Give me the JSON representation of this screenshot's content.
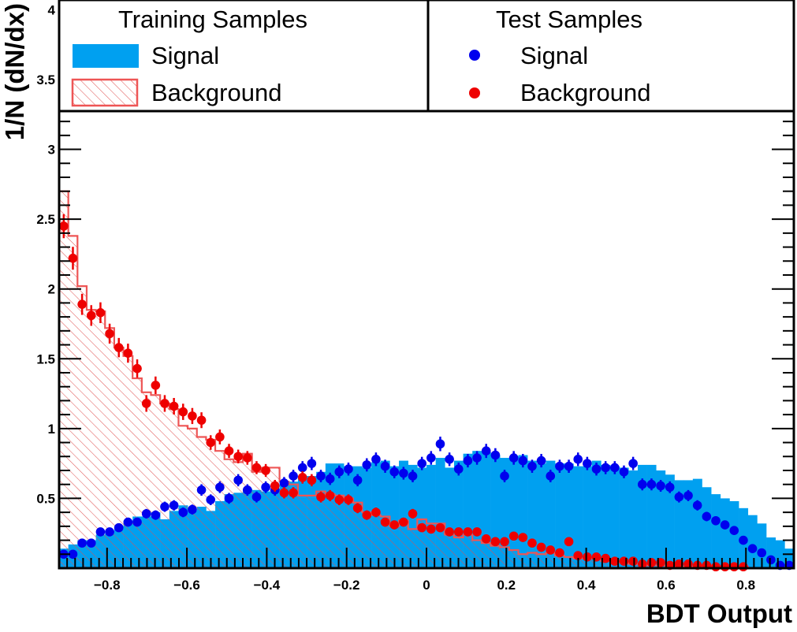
{
  "chart_data": {
    "type": "histogram",
    "xlabel": "BDT Output",
    "ylabel": "1/N (dN/dx)",
    "xlim": [
      -0.92,
      0.92
    ],
    "ylim": [
      0,
      4.07
    ],
    "x_ticks": [
      -0.8,
      -0.6,
      -0.4,
      -0.2,
      0,
      0.2,
      0.4,
      0.6,
      0.8
    ],
    "x_tick_labels": [
      "−0.8",
      "−0.6",
      "−0.4",
      "−0.2",
      "0",
      "0.2",
      "0.4",
      "0.6",
      "0.8"
    ],
    "y_ticks": [
      0.5,
      1,
      1.5,
      2,
      2.5,
      3,
      3.5,
      4
    ],
    "y_tick_labels": [
      "0.5",
      "1",
      "1.5",
      "2",
      "2.5",
      "3",
      "3.5",
      "4"
    ],
    "bins": {
      "low": -0.92,
      "width": 0.023,
      "count": 80
    },
    "legend": {
      "placement": "top",
      "training_title": "Training Samples",
      "test_title": "Test Samples",
      "training_signal": "Signal",
      "training_background": "Background",
      "test_signal": "Signal",
      "test_background": "Background"
    },
    "colors": {
      "signal_fill": "#00a0f0",
      "background_line": "#ee5555",
      "background_hatch": "#e05050",
      "test_signal": "#0000ee",
      "test_background": "#ee0000"
    },
    "series": [
      {
        "name": "Signal",
        "sample": "Training",
        "style": "filled",
        "values": [
          0.14,
          0.17,
          0.2,
          0.2,
          0.24,
          0.27,
          0.3,
          0.34,
          0.37,
          0.37,
          0.4,
          0.35,
          0.41,
          0.45,
          0.41,
          0.44,
          0.41,
          0.48,
          0.53,
          0.54,
          0.57,
          0.56,
          0.55,
          0.57,
          0.6,
          0.62,
          0.66,
          0.66,
          0.69,
          0.75,
          0.75,
          0.73,
          0.73,
          0.72,
          0.76,
          0.77,
          0.73,
          0.77,
          0.74,
          0.72,
          0.74,
          0.79,
          0.72,
          0.77,
          0.82,
          0.84,
          0.83,
          0.81,
          0.79,
          0.8,
          0.81,
          0.77,
          0.75,
          0.77,
          0.75,
          0.75,
          0.73,
          0.73,
          0.77,
          0.74,
          0.73,
          0.72,
          0.7,
          0.74,
          0.74,
          0.7,
          0.67,
          0.63,
          0.63,
          0.64,
          0.58,
          0.53,
          0.5,
          0.48,
          0.43,
          0.38,
          0.32,
          0.22,
          0.2,
          0.14
        ]
      },
      {
        "name": "Background",
        "sample": "Training",
        "style": "hatched",
        "values": [
          2.7,
          2.38,
          2.02,
          1.85,
          1.84,
          1.72,
          1.58,
          1.52,
          1.36,
          1.26,
          1.24,
          1.18,
          1.14,
          1.02,
          1.0,
          0.94,
          0.92,
          0.84,
          0.78,
          0.76,
          0.82,
          0.69,
          0.72,
          0.72,
          0.62,
          0.6,
          0.52,
          0.52,
          0.55,
          0.53,
          0.52,
          0.5,
          0.47,
          0.4,
          0.38,
          0.37,
          0.3,
          0.34,
          0.28,
          0.35,
          0.32,
          0.32,
          0.24,
          0.22,
          0.24,
          0.2,
          0.18,
          0.16,
          0.15,
          0.13,
          0.1,
          0.11,
          0.1,
          0.11,
          0.09,
          0.08,
          0.07,
          0.07,
          0.07,
          0.05,
          0.05,
          0.04,
          0.03,
          0.03,
          0.02,
          0.02,
          0.01,
          0.01,
          0.01,
          0.01,
          0.02,
          0.01,
          0.01,
          0.01,
          0.01,
          0.0,
          0.0,
          0.0,
          0.0,
          0.0
        ]
      },
      {
        "name": "Signal",
        "sample": "Test",
        "style": "points",
        "values": [
          0.1,
          0.1,
          0.18,
          0.18,
          0.26,
          0.26,
          0.29,
          0.33,
          0.33,
          0.39,
          0.38,
          0.44,
          0.45,
          0.4,
          0.42,
          0.56,
          0.49,
          0.58,
          0.5,
          0.63,
          0.56,
          0.51,
          0.58,
          0.56,
          0.61,
          0.66,
          0.72,
          0.75,
          0.66,
          0.64,
          0.69,
          0.71,
          0.63,
          0.74,
          0.78,
          0.73,
          0.69,
          0.68,
          0.66,
          0.75,
          0.79,
          0.89,
          0.78,
          0.71,
          0.77,
          0.79,
          0.84,
          0.81,
          0.66,
          0.79,
          0.77,
          0.73,
          0.77,
          0.66,
          0.73,
          0.73,
          0.78,
          0.75,
          0.71,
          0.72,
          0.72,
          0.69,
          0.75,
          0.6,
          0.6,
          0.59,
          0.58,
          0.51,
          0.52,
          0.45,
          0.37,
          0.34,
          0.31,
          0.27,
          0.2,
          0.14,
          0.11,
          0.06,
          0.02,
          0.02
        ]
      },
      {
        "name": "Background",
        "sample": "Test",
        "style": "points",
        "values": [
          2.45,
          2.22,
          1.89,
          1.81,
          1.83,
          1.68,
          1.58,
          1.54,
          1.43,
          1.18,
          1.31,
          1.18,
          1.16,
          1.12,
          1.09,
          1.06,
          0.9,
          0.94,
          0.84,
          0.8,
          0.79,
          0.72,
          0.7,
          0.59,
          0.54,
          0.54,
          0.65,
          0.63,
          0.51,
          0.52,
          0.49,
          0.49,
          0.43,
          0.38,
          0.4,
          0.33,
          0.31,
          0.33,
          0.39,
          0.29,
          0.28,
          0.29,
          0.26,
          0.26,
          0.26,
          0.26,
          0.21,
          0.19,
          0.19,
          0.23,
          0.22,
          0.18,
          0.15,
          0.13,
          0.11,
          0.19,
          0.09,
          0.08,
          0.08,
          0.07,
          0.05,
          0.05,
          0.05,
          0.03,
          0.04,
          0.04,
          0.02,
          0.03,
          0.03,
          0.02,
          0.02,
          0.01,
          0.01,
          0.01,
          0.01,
          0.0,
          0.0,
          0.0,
          0.0,
          0.0
        ]
      }
    ]
  }
}
